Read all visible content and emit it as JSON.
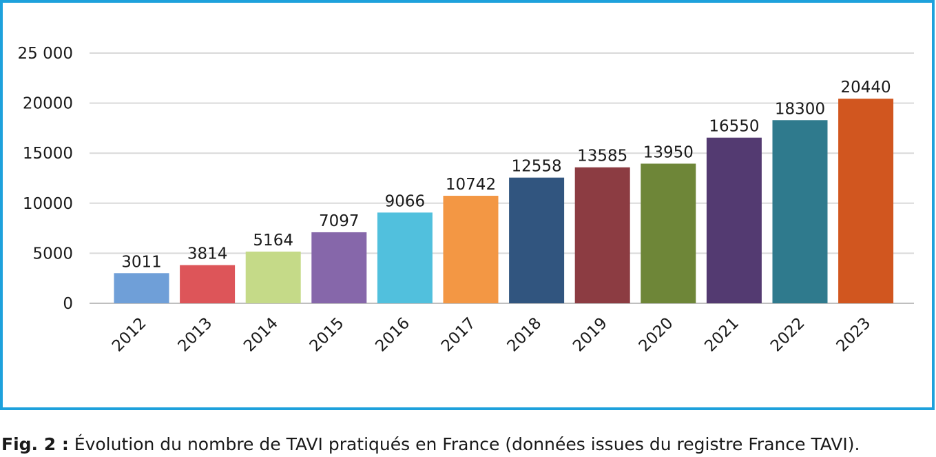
{
  "chart_data": {
    "type": "bar",
    "categories": [
      "2012",
      "2013",
      "2014",
      "2015",
      "2016",
      "2017",
      "2018",
      "2019",
      "2020",
      "2021",
      "2022",
      "2023"
    ],
    "values": [
      3011,
      3814,
      5164,
      7097,
      9066,
      10742,
      12558,
      13585,
      13950,
      16550,
      18300,
      20440
    ],
    "data_labels": [
      "3011",
      "3814",
      "5164",
      "7097",
      "9066",
      "10742",
      "12558",
      "13585",
      "13950",
      "16550",
      "18300",
      "20440"
    ],
    "y_ticks": [
      0,
      5000,
      10000,
      15000,
      20000,
      25000
    ],
    "y_tick_labels": [
      "0",
      "5000",
      "10000",
      "15000",
      "20000",
      "25 000"
    ],
    "ylim": [
      0,
      25000
    ],
    "grid": true,
    "legend": "none",
    "bar_colors": [
      "#6f9fd8",
      "#dd5559",
      "#c5da88",
      "#8667aa",
      "#51c0dd",
      "#f39744",
      "#31557f",
      "#8c3c42",
      "#6e8638",
      "#533a71",
      "#2f7a8d",
      "#d1561f"
    ],
    "frame_color": "#1da1dc",
    "title": "",
    "xlabel": "",
    "ylabel": ""
  },
  "caption": {
    "label": "Fig. 2 :",
    "text": " Évolution du nombre de TAVI pratiqués en France (données issues du registre France TAVI)."
  }
}
